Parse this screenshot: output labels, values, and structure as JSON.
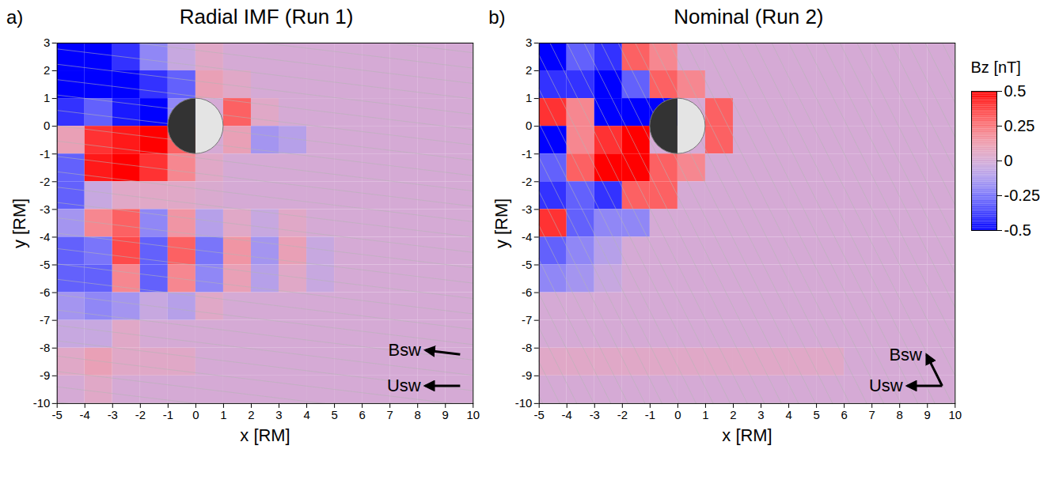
{
  "chart_data": [
    {
      "type": "heatmap",
      "label": "a)",
      "title": "Radial IMF (Run 1)",
      "xlabel": "x [RM]",
      "ylabel": "y [RM]",
      "xlim": [
        -5,
        10
      ],
      "ylim": [
        -10,
        3
      ],
      "xticks": [
        -5,
        -4,
        -3,
        -2,
        -1,
        0,
        1,
        2,
        3,
        4,
        5,
        6,
        7,
        8,
        9,
        10
      ],
      "yticks": [
        -10,
        -9,
        -8,
        -7,
        -6,
        -5,
        -4,
        -3,
        -2,
        -1,
        0,
        1,
        2,
        3
      ],
      "x": [
        -4.5,
        -3.5,
        -2.5,
        -1.5,
        -0.5,
        0.5,
        1.5,
        2.5,
        3.5,
        4.5,
        5.5,
        6.5,
        7.5,
        8.5,
        9.5
      ],
      "y": [
        2.5,
        1.5,
        0.5,
        -0.5,
        -1.5,
        -2.5,
        -3.5,
        -4.5,
        -5.5,
        -6.5,
        -7.5,
        -8.5,
        -9.5
      ],
      "cells": [
        [
          -0.5,
          -0.5,
          -0.4,
          -0.2,
          -0.05,
          0.05,
          0,
          0,
          0,
          0,
          0,
          0,
          0,
          0,
          0
        ],
        [
          -0.5,
          -0.5,
          -0.5,
          -0.4,
          -0.3,
          0.1,
          0.05,
          0,
          0,
          0,
          0,
          0,
          0,
          0,
          0
        ],
        [
          -0.4,
          -0.3,
          -0.45,
          -0.5,
          -0.2,
          0,
          0.3,
          0.05,
          0,
          0,
          0,
          0,
          0,
          0,
          0
        ],
        [
          0.1,
          0.4,
          0.45,
          0.5,
          0.3,
          0,
          0.1,
          -0.15,
          -0.1,
          0,
          0,
          0,
          0,
          0,
          0
        ],
        [
          -0.3,
          0.45,
          0.5,
          0.4,
          0.2,
          0.05,
          0,
          0,
          0,
          0,
          0,
          0,
          0,
          0,
          0
        ],
        [
          -0.3,
          -0.05,
          0.05,
          0.05,
          0.05,
          0.02,
          0,
          0,
          0,
          0,
          0,
          0,
          0,
          0,
          0
        ],
        [
          -0.15,
          0.2,
          0.3,
          -0.2,
          0.15,
          -0.1,
          0.05,
          -0.05,
          0.05,
          0,
          0,
          0,
          0,
          0,
          0
        ],
        [
          -0.3,
          -0.25,
          0.35,
          -0.3,
          0.3,
          -0.25,
          0.15,
          -0.15,
          0.1,
          -0.05,
          0,
          0,
          0,
          0,
          0
        ],
        [
          -0.3,
          -0.3,
          0.2,
          -0.3,
          0.2,
          -0.2,
          0.1,
          -0.1,
          0.05,
          -0.05,
          0,
          0,
          0,
          0,
          0
        ],
        [
          -0.15,
          -0.2,
          -0.15,
          -0.05,
          -0.1,
          0.05,
          0,
          0,
          0,
          0,
          0,
          0,
          0,
          0,
          0
        ],
        [
          -0.05,
          -0.05,
          0.05,
          0,
          0,
          0,
          0,
          0,
          0,
          0,
          0,
          0,
          0,
          0,
          0
        ],
        [
          0.05,
          0.1,
          0.05,
          0.05,
          0.05,
          0,
          0,
          0,
          0,
          0,
          0,
          0,
          0,
          0,
          0
        ],
        [
          0,
          0.05,
          0,
          0,
          0,
          0,
          0,
          0,
          0,
          0,
          0,
          0,
          0,
          0,
          0
        ]
      ],
      "imf_direction": [
        -1,
        0.12
      ],
      "flow_direction": [
        -1,
        0
      ],
      "annotations": [
        "Bsw",
        "Usw"
      ]
    },
    {
      "type": "heatmap",
      "label": "b)",
      "title": "Nominal (Run 2)",
      "xlabel": "x [RM]",
      "ylabel": "y [RM]",
      "xlim": [
        -5,
        10
      ],
      "ylim": [
        -10,
        3
      ],
      "xticks": [
        -5,
        -4,
        -3,
        -2,
        -1,
        0,
        1,
        2,
        3,
        4,
        5,
        6,
        7,
        8,
        9,
        10
      ],
      "yticks": [
        -10,
        -9,
        -8,
        -7,
        -6,
        -5,
        -4,
        -3,
        -2,
        -1,
        0,
        1,
        2,
        3
      ],
      "x": [
        -4.5,
        -3.5,
        -2.5,
        -1.5,
        -0.5,
        0.5,
        1.5,
        2.5,
        3.5,
        4.5,
        5.5,
        6.5,
        7.5,
        8.5,
        9.5
      ],
      "y": [
        2.5,
        1.5,
        0.5,
        -0.5,
        -1.5,
        -2.5,
        -3.5,
        -4.5,
        -5.5,
        -6.5,
        -7.5,
        -8.5,
        -9.5
      ],
      "cells": [
        [
          -0.5,
          -0.3,
          -0.4,
          0.3,
          0.2,
          0,
          0,
          0,
          0,
          0,
          0,
          0,
          0,
          0,
          0
        ],
        [
          -0.4,
          -0.4,
          -0.5,
          -0.3,
          0.3,
          0.2,
          0,
          0,
          0,
          0,
          0,
          0,
          0,
          0,
          0
        ],
        [
          0.4,
          0.2,
          -0.5,
          -0.5,
          -0.5,
          0,
          0.3,
          0,
          0,
          0,
          0,
          0,
          0,
          0,
          0
        ],
        [
          -0.5,
          0.2,
          0.4,
          0.5,
          0,
          0,
          0.3,
          0,
          0,
          0,
          0,
          0,
          0,
          0,
          0
        ],
        [
          -0.3,
          0.3,
          0.5,
          0.5,
          0.3,
          0.2,
          0,
          0,
          0,
          0,
          0,
          0,
          0,
          0,
          0
        ],
        [
          -0.4,
          -0.3,
          -0.4,
          0.3,
          0.3,
          0,
          0,
          0,
          0,
          0,
          0,
          0,
          0,
          0,
          0
        ],
        [
          0.4,
          -0.3,
          -0.2,
          -0.2,
          0,
          0,
          0,
          0,
          0,
          0,
          0,
          0,
          0,
          0,
          0
        ],
        [
          -0.3,
          -0.2,
          -0.1,
          0,
          0,
          0,
          0,
          0,
          0,
          0,
          0,
          0,
          0,
          0,
          0
        ],
        [
          -0.2,
          -0.15,
          -0.05,
          0,
          0,
          0,
          0,
          0,
          0,
          0,
          0,
          0,
          0,
          0,
          0
        ],
        [
          0,
          0,
          0,
          0,
          0,
          0,
          0,
          0,
          0,
          0,
          0,
          0,
          0,
          0,
          0
        ],
        [
          0,
          0,
          0,
          0,
          0,
          0,
          0,
          0,
          0,
          0,
          0,
          0,
          0,
          0,
          0
        ],
        [
          0.05,
          0.05,
          0.05,
          0.05,
          0.05,
          0.05,
          0.05,
          0.05,
          0.05,
          0.05,
          0.05,
          0,
          0,
          0,
          0
        ],
        [
          0,
          0,
          0,
          0,
          0,
          0,
          0,
          0,
          0,
          0,
          0,
          0,
          0,
          0,
          0
        ]
      ],
      "imf_direction": [
        -0.5,
        1
      ],
      "flow_direction": [
        -1,
        0
      ],
      "annotations": [
        "Bsw",
        "Usw"
      ],
      "colorbar": {
        "label": "Bz [nT]",
        "range": [
          -0.5,
          0.5
        ],
        "ticks": [
          -0.5,
          -0.25,
          0,
          0.25,
          0.5
        ]
      },
      "legend": "right"
    }
  ]
}
